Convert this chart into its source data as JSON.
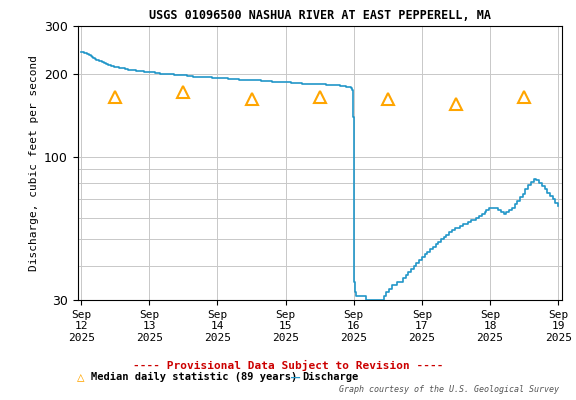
{
  "title": "USGS 01096500 NASHUA RIVER AT EAST PEPPERELL, MA",
  "ylabel": "Discharge, cubic feet per second",
  "ylim": [
    30,
    300
  ],
  "yticks": [
    30,
    100,
    200,
    300
  ],
  "background_color": "#ffffff",
  "plot_bg_color": "#ffffff",
  "grid_color": "#c8c8c8",
  "discharge_color": "#2196c8",
  "median_color": "#ffa500",
  "prov_color": "#cc0000",
  "legend_text_color": "#000000",
  "x_start": -0.05,
  "x_end": 7.05,
  "xtick_positions": [
    0,
    1,
    2,
    3,
    4,
    5,
    6,
    7
  ],
  "xtick_labels": [
    "Sep\n12\n2025",
    "Sep\n13\n2025",
    "Sep\n14\n2025",
    "Sep\n15\n2025",
    "Sep\n16\n2025",
    "Sep\n17\n2025",
    "Sep\n18\n2025",
    "Sep\n19\n2025"
  ],
  "discharge_x": [
    0.0,
    0.02,
    0.04,
    0.06,
    0.08,
    0.1,
    0.12,
    0.14,
    0.16,
    0.18,
    0.2,
    0.22,
    0.24,
    0.26,
    0.28,
    0.3,
    0.33,
    0.36,
    0.4,
    0.44,
    0.48,
    0.52,
    0.56,
    0.6,
    0.64,
    0.68,
    0.72,
    0.76,
    0.8,
    0.84,
    0.88,
    0.92,
    0.96,
    1.0,
    1.04,
    1.08,
    1.12,
    1.16,
    1.2,
    1.24,
    1.28,
    1.32,
    1.36,
    1.4,
    1.44,
    1.48,
    1.52,
    1.56,
    1.6,
    1.64,
    1.68,
    1.72,
    1.76,
    1.8,
    1.84,
    1.88,
    1.92,
    1.96,
    2.0,
    2.04,
    2.08,
    2.12,
    2.16,
    2.2,
    2.24,
    2.28,
    2.32,
    2.36,
    2.4,
    2.44,
    2.48,
    2.52,
    2.56,
    2.6,
    2.64,
    2.68,
    2.72,
    2.76,
    2.8,
    2.84,
    2.88,
    2.92,
    2.96,
    3.0,
    3.04,
    3.08,
    3.12,
    3.16,
    3.2,
    3.24,
    3.28,
    3.32,
    3.36,
    3.4,
    3.44,
    3.48,
    3.52,
    3.56,
    3.6,
    3.64,
    3.68,
    3.72,
    3.76,
    3.8,
    3.84,
    3.88,
    3.92,
    3.96,
    3.98,
    3.99,
    3.995,
    4.0,
    4.005,
    4.01,
    4.02,
    4.04,
    4.06,
    4.08,
    4.1,
    4.12,
    4.14,
    4.16,
    4.18,
    4.2,
    4.22,
    4.24,
    4.26,
    4.28,
    4.3,
    4.32,
    4.34,
    4.36,
    4.4,
    4.44,
    4.48,
    4.52,
    4.56,
    4.6,
    4.64,
    4.68,
    4.72,
    4.76,
    4.8,
    4.84,
    4.88,
    4.92,
    4.96,
    5.0,
    5.04,
    5.08,
    5.12,
    5.16,
    5.2,
    5.24,
    5.28,
    5.32,
    5.36,
    5.4,
    5.44,
    5.48,
    5.52,
    5.56,
    5.6,
    5.64,
    5.68,
    5.72,
    5.76,
    5.8,
    5.84,
    5.88,
    5.9,
    5.92,
    5.94,
    5.96,
    5.98,
    6.0,
    6.04,
    6.08,
    6.12,
    6.16,
    6.2,
    6.24,
    6.28,
    6.32,
    6.36,
    6.4,
    6.44,
    6.48,
    6.52,
    6.56,
    6.6,
    6.64,
    6.68,
    6.72,
    6.76,
    6.8,
    6.84,
    6.88,
    6.92,
    6.96,
    7.0
  ],
  "discharge_y": [
    242,
    241,
    240,
    239,
    238,
    237,
    235,
    233,
    231,
    229,
    227,
    226,
    225,
    224,
    223,
    222,
    220,
    218,
    216,
    214,
    213,
    212,
    211,
    210,
    209,
    208,
    207,
    207,
    206,
    205,
    205,
    204,
    204,
    203,
    203,
    202,
    202,
    201,
    201,
    200,
    200,
    200,
    199,
    199,
    198,
    198,
    198,
    197,
    197,
    196,
    196,
    196,
    195,
    195,
    195,
    195,
    194,
    194,
    194,
    193,
    193,
    193,
    192,
    192,
    192,
    192,
    191,
    191,
    191,
    190,
    190,
    190,
    190,
    190,
    189,
    189,
    189,
    189,
    188,
    188,
    188,
    188,
    187,
    187,
    187,
    186,
    186,
    186,
    186,
    185,
    185,
    185,
    185,
    185,
    184,
    184,
    184,
    184,
    183,
    183,
    183,
    182,
    182,
    181,
    181,
    180,
    179,
    178,
    175,
    165,
    140,
    100,
    60,
    35,
    32,
    31,
    31,
    31,
    31,
    31,
    31,
    31,
    30,
    30,
    30,
    30,
    30,
    30,
    30,
    30,
    30,
    30,
    30,
    31,
    32,
    33,
    34,
    34,
    35,
    35,
    36,
    37,
    38,
    39,
    40,
    41,
    42,
    43,
    44,
    45,
    46,
    47,
    48,
    49,
    50,
    51,
    52,
    53,
    54,
    55,
    55,
    56,
    57,
    57,
    58,
    59,
    59,
    60,
    61,
    62,
    62,
    63,
    64,
    64,
    65,
    65,
    65,
    65,
    64,
    63,
    62,
    63,
    64,
    65,
    67,
    69,
    71,
    73,
    76,
    79,
    81,
    83,
    82,
    80,
    78,
    76,
    74,
    72,
    70,
    68,
    66
  ],
  "median_x": [
    0.5,
    1.5,
    2.5,
    3.5,
    4.5,
    5.5,
    6.5
  ],
  "median_y": [
    165,
    173,
    162,
    165,
    163,
    156,
    165
  ],
  "footnote": "Graph courtesy of the U.S. Geological Survey"
}
